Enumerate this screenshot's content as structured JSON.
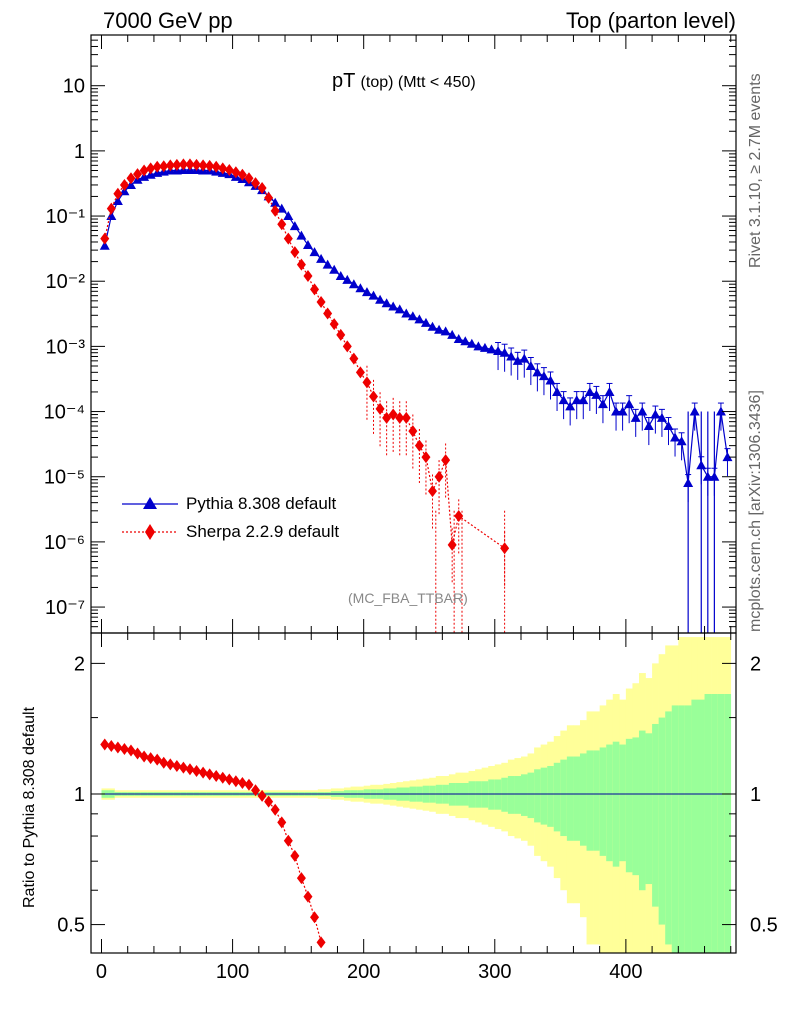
{
  "header": {
    "left": "7000 GeV pp",
    "right": "Top (parton level)"
  },
  "side_labels": {
    "rivet": "Rivet 3.1.10, ≥ 2.7M events",
    "mcplots": "mcplots.cern.ch [arXiv:1306.3436]"
  },
  "plot": {
    "title_main": "pT",
    "title_sub": "(top) (Mtt < 450)",
    "analysis": "(MC_FBA_TTBAR)",
    "ratio_ylabel": "Ratio to Pythia 8.308 default"
  },
  "colors": {
    "pythia": "#0000cc",
    "sherpa": "#ee0000",
    "band_inner": "#99ff99",
    "band_outer": "#ffff99"
  },
  "chart_data": [
    {
      "type": "line",
      "yscale": "log",
      "xlim": [
        -8,
        484
      ],
      "ylim": [
        4e-08,
        60
      ],
      "ytick_labels": [
        "10",
        "1",
        "10⁻¹",
        "10⁻²",
        "10⁻³",
        "10⁻⁴",
        "10⁻⁵",
        "10⁻⁶",
        "10⁻⁷"
      ],
      "legend": [
        "Pythia 8.308 default",
        "Sherpa 2.2.9 default"
      ],
      "legend_position": "lower-left",
      "series": [
        {
          "name": "Pythia 8.308 default",
          "marker": "triangle",
          "x": [
            2.5,
            7.5,
            12.5,
            17.5,
            22.5,
            27.5,
            32.5,
            37.5,
            42.5,
            47.5,
            52.5,
            57.5,
            62.5,
            67.5,
            72.5,
            77.5,
            82.5,
            87.5,
            92.5,
            97.5,
            102.5,
            107.5,
            112.5,
            117.5,
            122.5,
            127.5,
            132.5,
            137.5,
            142.5,
            147.5,
            152.5,
            157.5,
            162.5,
            167.5,
            172.5,
            177.5,
            182.5,
            187.5,
            192.5,
            197.5,
            202.5,
            207.5,
            212.5,
            217.5,
            222.5,
            227.5,
            232.5,
            237.5,
            242.5,
            247.5,
            252.5,
            257.5,
            262.5,
            267.5,
            272.5,
            277.5,
            282.5,
            287.5,
            292.5,
            297.5,
            302.5,
            307.5,
            312.5,
            317.5,
            322.5,
            327.5,
            332.5,
            337.5,
            342.5,
            347.5,
            352.5,
            357.5,
            362.5,
            367.5,
            372.5,
            377.5,
            382.5,
            387.5,
            392.5,
            397.5,
            402.5,
            407.5,
            412.5,
            417.5,
            422.5,
            427.5,
            432.5,
            437.5,
            442.5,
            447.5,
            452.5,
            457.5,
            462.5,
            467.5,
            472.5,
            477.5
          ],
          "y": [
            0.035,
            0.1,
            0.17,
            0.24,
            0.3,
            0.36,
            0.4,
            0.43,
            0.46,
            0.48,
            0.5,
            0.5,
            0.51,
            0.51,
            0.51,
            0.5,
            0.5,
            0.48,
            0.46,
            0.44,
            0.4,
            0.37,
            0.33,
            0.29,
            0.25,
            0.2,
            0.16,
            0.13,
            0.1,
            0.07,
            0.05,
            0.036,
            0.028,
            0.022,
            0.018,
            0.015,
            0.012,
            0.0105,
            0.009,
            0.0078,
            0.0068,
            0.006,
            0.0052,
            0.0046,
            0.0041,
            0.0037,
            0.0032,
            0.0029,
            0.0026,
            0.0023,
            0.002,
            0.0018,
            0.0017,
            0.0015,
            0.0013,
            0.0012,
            0.0011,
            0.001,
            0.00095,
            0.0009,
            0.00085,
            0.0008,
            0.0007,
            0.0006,
            0.00065,
            0.0005,
            0.0004,
            0.00035,
            0.0003,
            0.0002,
            0.00015,
            0.00012,
            0.00015,
            0.00015,
            0.0002,
            0.00018,
            0.00013,
            0.0002,
            0.0001,
            0.0001,
            0.00013,
            8e-05,
            0.0001,
            6e-05,
            9e-05,
            8e-05,
            6e-05,
            4e-05,
            3.5e-05,
            8e-06,
            0.0001,
            1.5e-05,
            1e-05,
            1e-05,
            0.0001,
            2e-05
          ]
        },
        {
          "name": "Sherpa 2.2.9 default",
          "marker": "diamond",
          "x": [
            2.5,
            7.5,
            12.5,
            17.5,
            22.5,
            27.5,
            32.5,
            37.5,
            42.5,
            47.5,
            52.5,
            57.5,
            62.5,
            67.5,
            72.5,
            77.5,
            82.5,
            87.5,
            92.5,
            97.5,
            102.5,
            107.5,
            112.5,
            117.5,
            122.5,
            127.5,
            132.5,
            137.5,
            142.5,
            147.5,
            152.5,
            157.5,
            162.5,
            167.5,
            172.5,
            177.5,
            182.5,
            187.5,
            192.5,
            197.5,
            202.5,
            207.5,
            212.5,
            217.5,
            222.5,
            227.5,
            232.5,
            237.5,
            242.5,
            247.5,
            252.5,
            257.5,
            262.5,
            267.5,
            272.5,
            307.5
          ],
          "y": [
            0.045,
            0.13,
            0.22,
            0.3,
            0.38,
            0.44,
            0.5,
            0.54,
            0.57,
            0.58,
            0.6,
            0.61,
            0.62,
            0.62,
            0.61,
            0.6,
            0.59,
            0.57,
            0.54,
            0.51,
            0.47,
            0.43,
            0.38,
            0.32,
            0.27,
            0.19,
            0.12,
            0.075,
            0.045,
            0.028,
            0.018,
            0.012,
            0.0075,
            0.0048,
            0.0032,
            0.0022,
            0.0015,
            0.001,
            0.00065,
            0.0004,
            0.00028,
            0.00017,
            0.00011,
            8e-05,
            9e-05,
            8e-05,
            8e-05,
            5e-05,
            3e-05,
            2e-05,
            6e-06,
            1e-05,
            1.8e-05,
            9e-07,
            2.5e-06,
            8e-07
          ]
        }
      ]
    },
    {
      "type": "line",
      "ylabel": "Ratio to Pythia 8.308 default",
      "yscale": "log",
      "xlim": [
        -8,
        484
      ],
      "ylim": [
        0.43,
        2.35
      ],
      "ytick_labels": [
        "2",
        "1",
        "0.5"
      ],
      "xtick_labels": [
        "0",
        "100",
        "200",
        "300",
        "400"
      ],
      "series": [
        {
          "name": "Sherpa 2.2.9 default",
          "x": [
            2.5,
            7.5,
            12.5,
            17.5,
            22.5,
            27.5,
            32.5,
            37.5,
            42.5,
            47.5,
            52.5,
            57.5,
            62.5,
            67.5,
            72.5,
            77.5,
            82.5,
            87.5,
            92.5,
            97.5,
            102.5,
            107.5,
            112.5,
            117.5,
            122.5,
            127.5,
            132.5,
            137.5,
            142.5,
            147.5,
            152.5,
            157.5,
            162.5,
            167.5
          ],
          "y": [
            1.3,
            1.29,
            1.28,
            1.27,
            1.26,
            1.24,
            1.22,
            1.21,
            1.2,
            1.18,
            1.17,
            1.16,
            1.15,
            1.14,
            1.13,
            1.12,
            1.11,
            1.1,
            1.09,
            1.08,
            1.07,
            1.06,
            1.05,
            1.02,
            0.99,
            0.96,
            0.92,
            0.86,
            0.78,
            0.72,
            0.64,
            0.58,
            0.52,
            0.455
          ]
        }
      ],
      "band_inner_halfwidth": [
        0.02,
        0.02,
        0.01,
        0.01,
        0.01,
        0.01,
        0.01,
        0.01,
        0.01,
        0.01,
        0.01,
        0.01,
        0.01,
        0.01,
        0.01,
        0.01,
        0.01,
        0.01,
        0.01,
        0.01,
        0.01,
        0.01,
        0.01,
        0.01,
        0.01,
        0.01,
        0.01,
        0.01,
        0.01,
        0.01,
        0.01,
        0.01,
        0.01,
        0.01,
        0.01,
        0.015,
        0.015,
        0.02,
        0.02,
        0.02,
        0.025,
        0.025,
        0.025,
        0.03,
        0.03,
        0.035,
        0.035,
        0.04,
        0.04,
        0.045,
        0.045,
        0.05,
        0.05,
        0.06,
        0.06,
        0.06,
        0.07,
        0.07,
        0.07,
        0.08,
        0.08,
        0.09,
        0.1,
        0.1,
        0.11,
        0.12,
        0.14,
        0.15,
        0.16,
        0.18,
        0.2,
        0.22,
        0.22,
        0.24,
        0.26,
        0.26,
        0.28,
        0.3,
        0.32,
        0.3,
        0.34,
        0.35,
        0.4,
        0.38,
        0.45,
        0.5,
        0.55,
        0.6,
        0.6,
        0.6,
        0.65,
        0.65,
        0.7,
        0.7,
        0.7,
        0.7
      ],
      "band_outer_halfwidth": [
        0.03,
        0.03,
        0.02,
        0.02,
        0.02,
        0.02,
        0.02,
        0.02,
        0.02,
        0.02,
        0.02,
        0.02,
        0.02,
        0.02,
        0.02,
        0.02,
        0.02,
        0.02,
        0.02,
        0.02,
        0.02,
        0.02,
        0.02,
        0.02,
        0.02,
        0.02,
        0.02,
        0.02,
        0.02,
        0.02,
        0.02,
        0.02,
        0.02,
        0.025,
        0.025,
        0.03,
        0.03,
        0.035,
        0.04,
        0.04,
        0.045,
        0.05,
        0.05,
        0.055,
        0.06,
        0.065,
        0.07,
        0.075,
        0.08,
        0.085,
        0.09,
        0.1,
        0.1,
        0.11,
        0.12,
        0.12,
        0.13,
        0.14,
        0.15,
        0.16,
        0.17,
        0.18,
        0.2,
        0.21,
        0.22,
        0.24,
        0.28,
        0.3,
        0.32,
        0.36,
        0.4,
        0.44,
        0.44,
        0.48,
        0.55,
        0.55,
        0.6,
        0.65,
        0.7,
        0.65,
        0.75,
        0.8,
        0.9,
        0.85,
        1.0,
        1.1,
        1.2,
        1.2,
        1.3,
        1.3,
        1.3,
        1.3,
        1.3,
        1.3,
        1.3,
        1.3
      ]
    }
  ]
}
